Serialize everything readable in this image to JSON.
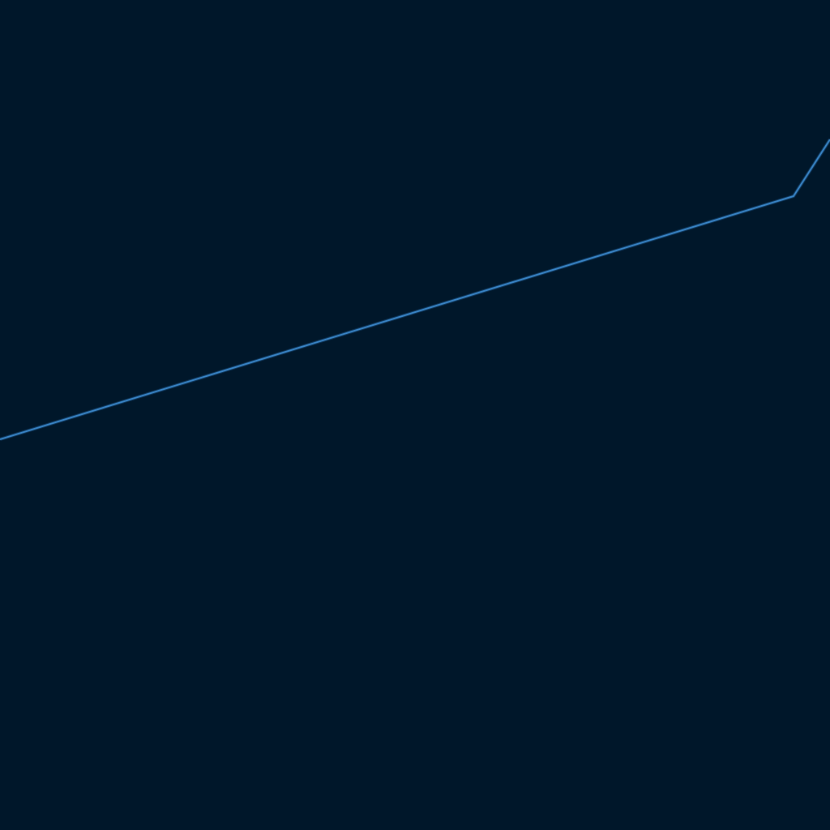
{
  "colors": {
    "background": "#00172a",
    "line": "#3a86c8",
    "line_glow": "#1f5f9a"
  },
  "chart_data": {
    "type": "line",
    "title": "",
    "xlabel": "",
    "ylabel": "",
    "grid": false,
    "x": [
      0,
      979,
      1024
    ],
    "series": [
      {
        "values": [
          482,
          782,
          852
        ]
      }
    ],
    "xlim": [
      0,
      1024
    ],
    "ylim": [
      0,
      1024
    ]
  }
}
